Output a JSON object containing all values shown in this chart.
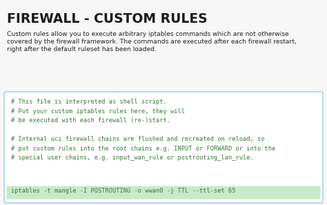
{
  "title": "FIREWALL - CUSTOM RULES",
  "body_line1": "Custom rules allow you to execute arbitrary iptables commands which are not otherwise",
  "body_line2": "covered by the firewall framework. The commands are executed after each firewall restart,",
  "body_line3": "right after the default ruleset has been loaded.",
  "code_lines": [
    "# This file is interpreted as shell script.",
    "# Put your custom iptables rules here, they will",
    "# be executed with each firewall (re-)start.",
    "",
    "# Internal uci firewall chains are flushed and recreated on reload, so",
    "# put custom rules into the root chains e.g. INPUT or FORWARD or into the",
    "# special user chains, e.g. input_wan_rule or postrouting_lan_rule."
  ],
  "highlighted_line": "iptables -t mangle -I POSTROUTING -o wwan0 -j TTL --ttl-set 65",
  "bg_color": "#f7f7f7",
  "box_bg_color": "#ffffff",
  "box_border_color": "#99ccdd",
  "highlight_bg_color": "#c8eac8",
  "title_color": "#1a1a1a",
  "body_color": "#222222",
  "code_color": "#3a7a3a",
  "title_fontsize": 13.5,
  "body_fontsize": 6.6,
  "code_fontsize": 6.2
}
